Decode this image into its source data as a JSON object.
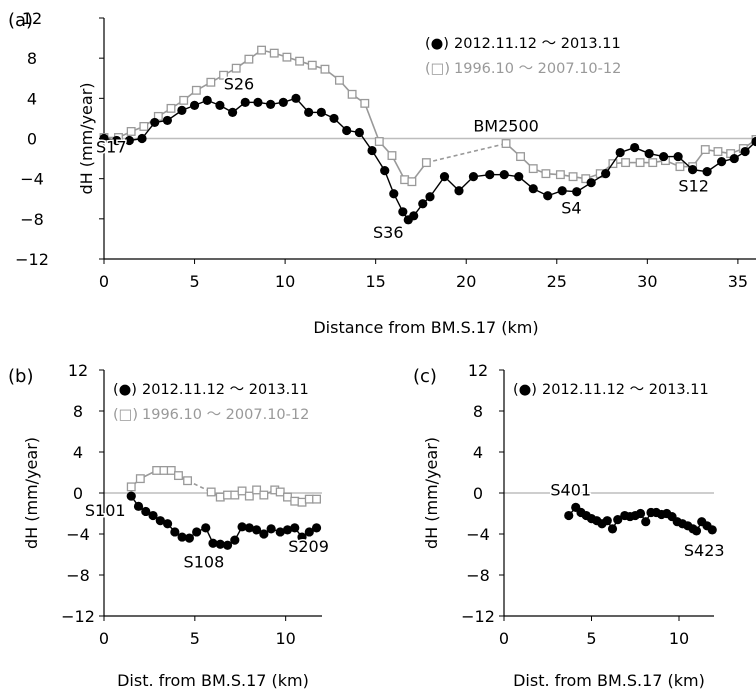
{
  "chart_data": [
    {
      "panel": "(a)",
      "type": "line",
      "xlabel": "Distance from BM.S.17 (km)",
      "ylabel": "dH (mm/year)",
      "xlim": [
        0,
        36
      ],
      "ylim": [
        -12,
        12
      ],
      "xticks": [
        0,
        5,
        10,
        15,
        20,
        25,
        30,
        35
      ],
      "yticks": [
        -12,
        -8,
        -4,
        0,
        4,
        8,
        12
      ],
      "legend_position": "top-right",
      "series": [
        {
          "name": "2012.11.12 ～ 2013.11",
          "marker_label": "(●)",
          "color": "#000000",
          "marker": "filled-circle",
          "points": [
            [
              0,
              0
            ],
            [
              0.7,
              -0.2
            ],
            [
              1.4,
              -0.2
            ],
            [
              2.1,
              0
            ],
            [
              2.8,
              1.6
            ],
            [
              3.5,
              1.8
            ],
            [
              4.3,
              2.8
            ],
            [
              5.0,
              3.3
            ],
            [
              5.7,
              3.8
            ],
            [
              6.4,
              3.3
            ],
            [
              7.1,
              2.6
            ],
            [
              7.8,
              3.6
            ],
            [
              8.5,
              3.6
            ],
            [
              9.2,
              3.4
            ],
            [
              9.9,
              3.6
            ],
            [
              10.6,
              4.0
            ],
            [
              11.3,
              2.6
            ],
            [
              12.0,
              2.6
            ],
            [
              12.7,
              2.0
            ],
            [
              13.4,
              0.8
            ],
            [
              14.1,
              0.6
            ],
            [
              14.8,
              -1.2
            ],
            [
              15.5,
              -3.2
            ],
            [
              16.0,
              -5.5
            ],
            [
              16.5,
              -7.3
            ],
            [
              16.8,
              -8.1
            ],
            [
              17.1,
              -7.7
            ],
            [
              17.6,
              -6.5
            ],
            [
              18.0,
              -5.8
            ],
            [
              18.8,
              -3.8
            ],
            [
              19.6,
              -5.2
            ],
            [
              20.4,
              -3.8
            ],
            [
              21.3,
              -3.6
            ],
            [
              22.1,
              -3.6
            ],
            [
              22.9,
              -3.8
            ],
            [
              23.7,
              -5.0
            ],
            [
              24.5,
              -5.7
            ],
            [
              25.3,
              -5.2
            ],
            [
              26.1,
              -5.3
            ],
            [
              26.9,
              -4.4
            ],
            [
              27.7,
              -3.5
            ],
            [
              28.5,
              -1.4
            ],
            [
              29.3,
              -0.9
            ],
            [
              30.1,
              -1.5
            ],
            [
              30.9,
              -1.8
            ],
            [
              31.7,
              -1.8
            ],
            [
              32.5,
              -3.1
            ],
            [
              33.3,
              -3.3
            ],
            [
              34.1,
              -2.3
            ],
            [
              34.8,
              -2.0
            ],
            [
              35.4,
              -1.3
            ],
            [
              36.0,
              -0.3
            ]
          ]
        },
        {
          "name": "1996.10 ～ 2007.10-12",
          "marker_label": "(□)",
          "color": "#999999",
          "marker": "open-square",
          "points": [
            [
              0,
              0.1
            ],
            [
              0.8,
              0.1
            ],
            [
              1.5,
              0.7
            ],
            [
              2.2,
              1.2
            ],
            [
              3.0,
              2.2
            ],
            [
              3.7,
              3.0
            ],
            [
              4.4,
              3.8
            ],
            [
              5.1,
              4.8
            ],
            [
              5.9,
              5.6
            ],
            [
              6.6,
              6.3
            ],
            [
              7.3,
              7.0
            ],
            [
              8.0,
              7.9
            ],
            [
              8.7,
              8.8
            ],
            [
              9.4,
              8.5
            ],
            [
              10.1,
              8.1
            ],
            [
              10.8,
              7.7
            ],
            [
              11.5,
              7.3
            ],
            [
              12.2,
              6.9
            ],
            [
              13.0,
              5.8
            ],
            [
              13.7,
              4.4
            ],
            [
              14.4,
              3.5
            ],
            [
              15.2,
              -0.3
            ],
            [
              15.9,
              -1.7
            ],
            [
              16.6,
              -4.1
            ],
            [
              17.0,
              -4.3
            ],
            [
              17.8,
              -2.4
            ],
            [
              22.2,
              -0.5
            ],
            [
              23.0,
              -1.8
            ],
            [
              23.7,
              -3.0
            ],
            [
              24.4,
              -3.5
            ],
            [
              25.2,
              -3.6
            ],
            [
              25.9,
              -3.8
            ],
            [
              26.6,
              -4.0
            ],
            [
              27.4,
              -3.5
            ],
            [
              28.1,
              -2.5
            ],
            [
              28.8,
              -2.4
            ],
            [
              29.6,
              -2.4
            ],
            [
              30.3,
              -2.4
            ],
            [
              31.0,
              -2.2
            ],
            [
              31.8,
              -2.8
            ],
            [
              32.5,
              -2.8
            ],
            [
              33.2,
              -1.1
            ],
            [
              33.9,
              -1.3
            ],
            [
              34.6,
              -1.5
            ],
            [
              35.3,
              -1.0
            ],
            [
              36.0,
              -0.1
            ]
          ]
        }
      ],
      "gap_segments_dashed": [
        [
          17.8,
          22.2
        ]
      ],
      "annotations": [
        {
          "text": "S17",
          "x": 0,
          "y": 0
        },
        {
          "text": "S26",
          "x": 6.9,
          "y": 3.7
        },
        {
          "text": "BM2500",
          "x": 22.2,
          "y": -0.5
        },
        {
          "text": "S36",
          "x": 16.8,
          "y": -8.1
        },
        {
          "text": "S4",
          "x": 25.8,
          "y": -5.3
        },
        {
          "text": "S12",
          "x": 33.0,
          "y": -3.3
        }
      ]
    },
    {
      "panel": "(b)",
      "type": "line",
      "xlabel": "Dist. from BM.S.17 (km)",
      "ylabel": "dH (mm/year)",
      "xlim": [
        0,
        12
      ],
      "ylim": [
        -12,
        12
      ],
      "xticks": [
        0,
        5,
        10
      ],
      "yticks": [
        -12,
        -8,
        -4,
        0,
        4,
        8,
        12
      ],
      "legend_position": "top-left",
      "series": [
        {
          "name": "2012.11.12 ～ 2013.11",
          "marker_label": "(●)",
          "color": "#000000",
          "marker": "filled-circle",
          "points": [
            [
              1.5,
              -0.3
            ],
            [
              1.9,
              -1.3
            ],
            [
              2.3,
              -1.8
            ],
            [
              2.7,
              -2.2
            ],
            [
              3.1,
              -2.7
            ],
            [
              3.5,
              -3.0
            ],
            [
              3.9,
              -3.8
            ],
            [
              4.3,
              -4.3
            ],
            [
              4.7,
              -4.4
            ],
            [
              5.1,
              -3.8
            ],
            [
              5.6,
              -3.4
            ],
            [
              6.0,
              -4.9
            ],
            [
              6.4,
              -5.0
            ],
            [
              6.8,
              -5.1
            ],
            [
              7.2,
              -4.6
            ],
            [
              7.6,
              -3.3
            ],
            [
              8.0,
              -3.4
            ],
            [
              8.4,
              -3.6
            ],
            [
              8.8,
              -4.0
            ],
            [
              9.2,
              -3.5
            ],
            [
              9.7,
              -3.8
            ],
            [
              10.1,
              -3.6
            ],
            [
              10.5,
              -3.4
            ],
            [
              10.9,
              -4.3
            ],
            [
              11.3,
              -3.8
            ],
            [
              11.7,
              -3.4
            ]
          ]
        },
        {
          "name": "1996.10 ～ 2007.10-12",
          "marker_label": "(□)",
          "color": "#999999",
          "marker": "open-square",
          "points": [
            [
              1.5,
              0.6
            ],
            [
              2.0,
              1.4
            ],
            [
              2.9,
              2.2
            ],
            [
              3.3,
              2.2
            ],
            [
              3.7,
              2.2
            ],
            [
              4.1,
              1.7
            ],
            [
              4.6,
              1.2
            ],
            [
              5.9,
              0.1
            ],
            [
              6.4,
              -0.4
            ],
            [
              6.8,
              -0.2
            ],
            [
              7.2,
              -0.2
            ],
            [
              7.6,
              0.2
            ],
            [
              8.0,
              -0.3
            ],
            [
              8.4,
              0.3
            ],
            [
              8.8,
              -0.2
            ],
            [
              9.4,
              0.3
            ],
            [
              9.7,
              0.1
            ],
            [
              10.1,
              -0.4
            ],
            [
              10.5,
              -0.8
            ],
            [
              10.9,
              -0.9
            ],
            [
              11.3,
              -0.6
            ],
            [
              11.7,
              -0.6
            ]
          ]
        }
      ],
      "gap_segments_dashed": [
        [
          4.6,
          5.9
        ]
      ],
      "annotations": [
        {
          "text": "S101",
          "x": 1.5,
          "y": -0.3
        },
        {
          "text": "S108",
          "x": 6.6,
          "y": -5.1
        },
        {
          "text": "S209",
          "x": 11.7,
          "y": -3.4
        }
      ]
    },
    {
      "panel": "(c)",
      "type": "line",
      "xlabel": "Dist. from BM.S.17 (km)",
      "ylabel": "dH (mm/year)",
      "xlim": [
        0,
        12
      ],
      "ylim": [
        -12,
        12
      ],
      "xticks": [
        0,
        5,
        10
      ],
      "yticks": [
        -12,
        -8,
        -4,
        0,
        4,
        8,
        12
      ],
      "legend_position": "top-left",
      "series": [
        {
          "name": "2012.11.12 ～ 2013.11",
          "marker_label": "(●)",
          "color": "#000000",
          "marker": "filled-circle",
          "points": [
            [
              3.7,
              -2.2
            ],
            [
              4.1,
              -1.4
            ],
            [
              4.4,
              -1.9
            ],
            [
              4.7,
              -2.2
            ],
            [
              5.0,
              -2.5
            ],
            [
              5.3,
              -2.7
            ],
            [
              5.6,
              -3.0
            ],
            [
              5.9,
              -2.7
            ],
            [
              6.2,
              -3.5
            ],
            [
              6.5,
              -2.6
            ],
            [
              6.9,
              -2.2
            ],
            [
              7.2,
              -2.3
            ],
            [
              7.5,
              -2.2
            ],
            [
              7.8,
              -2.0
            ],
            [
              8.1,
              -2.8
            ],
            [
              8.4,
              -1.9
            ],
            [
              8.7,
              -1.9
            ],
            [
              9.0,
              -2.1
            ],
            [
              9.3,
              -2.0
            ],
            [
              9.6,
              -2.3
            ],
            [
              9.9,
              -2.8
            ],
            [
              10.2,
              -3.0
            ],
            [
              10.5,
              -3.2
            ],
            [
              10.8,
              -3.5
            ],
            [
              11.0,
              -3.7
            ],
            [
              11.3,
              -2.8
            ],
            [
              11.6,
              -3.2
            ],
            [
              11.9,
              -3.6
            ]
          ]
        }
      ],
      "annotations": [
        {
          "text": "S401",
          "x": 4.1,
          "y": -1.4
        },
        {
          "text": "S423",
          "x": 11.9,
          "y": -3.6
        }
      ]
    }
  ]
}
